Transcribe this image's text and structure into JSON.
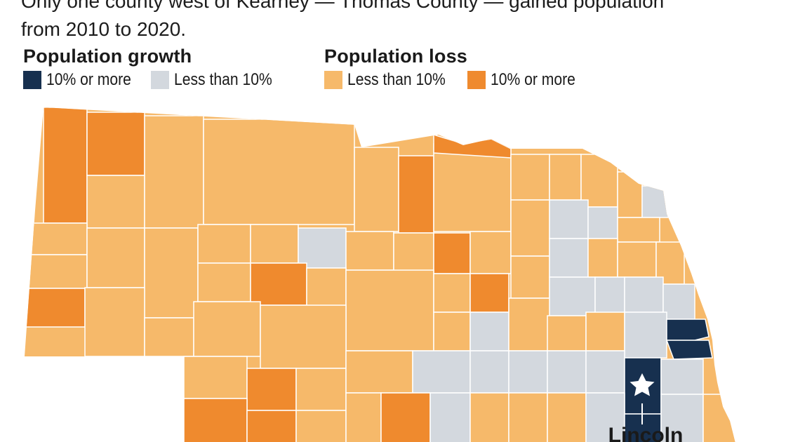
{
  "intro_text": {
    "line1": "Only one county west of Kearney — Thomas County — gained population",
    "line2": "from 2010 to 2020."
  },
  "legend": {
    "growth": {
      "title": "Population growth",
      "items": [
        {
          "label": "10% or more",
          "color": "#17304f"
        },
        {
          "label": "Less than 10%",
          "color": "#d3d8de"
        }
      ]
    },
    "loss": {
      "title": "Population loss",
      "items": [
        {
          "label": "Less than 10%",
          "color": "#f6b96a"
        },
        {
          "label": "10% or more",
          "color": "#ef8a2e"
        }
      ]
    }
  },
  "map": {
    "city_label": "Lincoln",
    "city_marker_icon": "star-icon",
    "border_color": "#ffffff"
  }
}
